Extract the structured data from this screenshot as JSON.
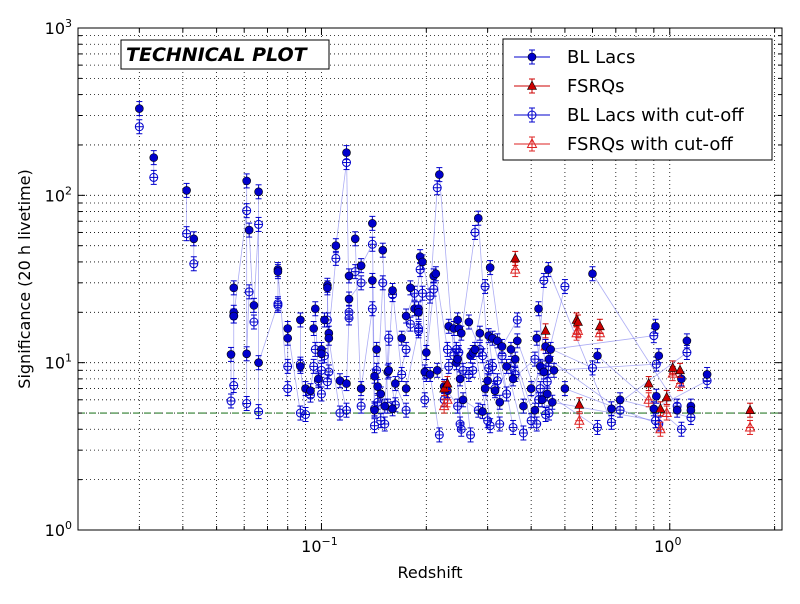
{
  "chart_data": {
    "type": "scatter",
    "annotation": "TECHNICAL PLOT",
    "xlabel": "Redshift",
    "ylabel": "Significance (20 h livetime)",
    "xscale": "log",
    "yscale": "log",
    "xlim": [
      0.02,
      2.1
    ],
    "ylim": [
      1,
      1000
    ],
    "x_tick_labels": [
      {
        "value": 0.1,
        "base": "10",
        "exp": "−1"
      },
      {
        "value": 1,
        "base": "10",
        "exp": "0"
      }
    ],
    "y_tick_labels": [
      {
        "value": 1,
        "base": "10",
        "exp": "0"
      },
      {
        "value": 10,
        "base": "10",
        "exp": "1"
      },
      {
        "value": 100,
        "base": "10",
        "exp": "2"
      },
      {
        "value": 1000,
        "base": "10",
        "exp": "3"
      }
    ],
    "grid": true,
    "legend_position": "top-right",
    "threshold": {
      "y": 5,
      "color": "#2e7d2e",
      "style": "dashed"
    },
    "series": [
      {
        "name": "BL Lacs",
        "marker": "filled-circle",
        "color": "#0000cc",
        "points": [
          [
            0.03,
            330
          ],
          [
            0.033,
            168
          ],
          [
            0.041,
            107
          ],
          [
            0.043,
            55
          ],
          [
            0.055,
            11.2
          ],
          [
            0.056,
            28
          ],
          [
            0.056,
            20
          ],
          [
            0.056,
            19
          ],
          [
            0.061,
            122
          ],
          [
            0.061,
            11.3
          ],
          [
            0.062,
            62
          ],
          [
            0.064,
            22
          ],
          [
            0.066,
            105
          ],
          [
            0.066,
            10
          ],
          [
            0.075,
            36
          ],
          [
            0.075,
            35
          ],
          [
            0.08,
            14
          ],
          [
            0.08,
            16
          ],
          [
            0.087,
            18
          ],
          [
            0.087,
            9.5
          ],
          [
            0.09,
            7
          ],
          [
            0.093,
            6.8
          ],
          [
            0.095,
            16
          ],
          [
            0.096,
            21
          ],
          [
            0.098,
            8
          ],
          [
            0.1,
            12
          ],
          [
            0.1,
            11.3
          ],
          [
            0.102,
            18
          ],
          [
            0.104,
            29
          ],
          [
            0.104,
            28
          ],
          [
            0.105,
            15
          ],
          [
            0.105,
            14
          ],
          [
            0.11,
            50
          ],
          [
            0.113,
            7.8
          ],
          [
            0.118,
            180
          ],
          [
            0.118,
            7.5
          ],
          [
            0.12,
            33
          ],
          [
            0.12,
            24
          ],
          [
            0.125,
            55
          ],
          [
            0.13,
            38
          ],
          [
            0.13,
            7
          ],
          [
            0.14,
            68
          ],
          [
            0.14,
            31
          ],
          [
            0.142,
            8.3
          ],
          [
            0.142,
            5.2
          ],
          [
            0.144,
            12
          ],
          [
            0.145,
            7.2
          ],
          [
            0.148,
            6.5
          ],
          [
            0.15,
            47
          ],
          [
            0.152,
            5.5
          ],
          [
            0.155,
            8.8
          ],
          [
            0.156,
            9
          ],
          [
            0.16,
            27
          ],
          [
            0.16,
            5.3
          ],
          [
            0.163,
            7.5
          ],
          [
            0.17,
            14
          ],
          [
            0.175,
            19
          ],
          [
            0.175,
            7
          ],
          [
            0.18,
            28
          ],
          [
            0.185,
            21
          ],
          [
            0.19,
            21
          ],
          [
            0.19,
            20
          ],
          [
            0.192,
            43
          ],
          [
            0.195,
            40
          ],
          [
            0.198,
            8.8
          ],
          [
            0.2,
            11.5
          ],
          [
            0.205,
            8.5
          ],
          [
            0.21,
            33
          ],
          [
            0.213,
            34
          ],
          [
            0.215,
            9
          ],
          [
            0.218,
            133
          ],
          [
            0.225,
            7.2
          ],
          [
            0.23,
            6.8
          ],
          [
            0.232,
            16.5
          ],
          [
            0.24,
            16
          ],
          [
            0.244,
            10
          ],
          [
            0.246,
            18
          ],
          [
            0.246,
            10.5
          ],
          [
            0.248,
            16
          ],
          [
            0.25,
            8
          ],
          [
            0.252,
            15
          ],
          [
            0.255,
            6
          ],
          [
            0.265,
            17.5
          ],
          [
            0.268,
            11
          ],
          [
            0.272,
            11.5
          ],
          [
            0.276,
            12
          ],
          [
            0.282,
            73
          ],
          [
            0.285,
            15
          ],
          [
            0.29,
            5.1
          ],
          [
            0.295,
            7
          ],
          [
            0.3,
            7.8
          ],
          [
            0.302,
            14.5
          ],
          [
            0.305,
            37
          ],
          [
            0.31,
            14
          ],
          [
            0.315,
            6.8
          ],
          [
            0.32,
            13.5
          ],
          [
            0.325,
            5.8
          ],
          [
            0.33,
            12.5
          ],
          [
            0.34,
            9.5
          ],
          [
            0.35,
            12
          ],
          [
            0.355,
            8
          ],
          [
            0.36,
            10.5
          ],
          [
            0.365,
            13.5
          ],
          [
            0.38,
            5.5
          ],
          [
            0.4,
            7
          ],
          [
            0.41,
            5.2
          ],
          [
            0.415,
            14
          ],
          [
            0.42,
            21
          ],
          [
            0.425,
            9.5
          ],
          [
            0.43,
            6
          ],
          [
            0.435,
            8.8
          ],
          [
            0.44,
            12.5
          ],
          [
            0.445,
            6.5
          ],
          [
            0.448,
            36
          ],
          [
            0.45,
            10.5
          ],
          [
            0.455,
            12
          ],
          [
            0.46,
            5.8
          ],
          [
            0.465,
            9
          ],
          [
            0.5,
            7
          ],
          [
            0.6,
            34
          ],
          [
            0.62,
            11
          ],
          [
            0.68,
            5.3
          ],
          [
            0.72,
            6
          ],
          [
            0.9,
            5.3
          ],
          [
            0.91,
            16.5
          ],
          [
            0.915,
            6.3
          ],
          [
            0.93,
            11
          ],
          [
            1.05,
            5.2
          ],
          [
            1.08,
            8
          ],
          [
            1.12,
            13.5
          ],
          [
            1.15,
            5.5
          ],
          [
            1.15,
            5.2
          ],
          [
            1.28,
            8.5
          ]
        ]
      },
      {
        "name": "FSRQs",
        "marker": "filled-triangle",
        "color": "#cc0000",
        "points": [
          [
            0.225,
            7
          ],
          [
            0.23,
            7.5
          ],
          [
            0.36,
            42
          ],
          [
            0.44,
            15.5
          ],
          [
            0.54,
            18
          ],
          [
            0.545,
            17.5
          ],
          [
            0.55,
            5.6
          ],
          [
            0.63,
            16.5
          ],
          [
            0.87,
            7.5
          ],
          [
            0.94,
            5.3
          ],
          [
            0.98,
            6.2
          ],
          [
            1.02,
            9.3
          ],
          [
            1.07,
            9
          ],
          [
            1.7,
            5.2
          ]
        ]
      },
      {
        "name": "BL Lacs with cut-off",
        "marker": "open-circle-cross",
        "color": "#0000cc",
        "points": [
          [
            0.03,
            257
          ],
          [
            0.033,
            128
          ],
          [
            0.041,
            59
          ],
          [
            0.043,
            39
          ],
          [
            0.055,
            5.9
          ],
          [
            0.056,
            7.3
          ],
          [
            0.056,
            19
          ],
          [
            0.061,
            81
          ],
          [
            0.061,
            5.7
          ],
          [
            0.062,
            26.5
          ],
          [
            0.064,
            17.5
          ],
          [
            0.066,
            67
          ],
          [
            0.066,
            5.1
          ],
          [
            0.075,
            22.5
          ],
          [
            0.075,
            22
          ],
          [
            0.08,
            7
          ],
          [
            0.08,
            9.5
          ],
          [
            0.087,
            5
          ],
          [
            0.087,
            9.8
          ],
          [
            0.09,
            4.9
          ],
          [
            0.093,
            6.4
          ],
          [
            0.095,
            9.5
          ],
          [
            0.096,
            12
          ],
          [
            0.098,
            7.8
          ],
          [
            0.1,
            9
          ],
          [
            0.1,
            6.5
          ],
          [
            0.102,
            11
          ],
          [
            0.104,
            18
          ],
          [
            0.104,
            7.7
          ],
          [
            0.105,
            8.8
          ],
          [
            0.11,
            42
          ],
          [
            0.113,
            5
          ],
          [
            0.118,
            157
          ],
          [
            0.118,
            5.2
          ],
          [
            0.12,
            20
          ],
          [
            0.12,
            18.5
          ],
          [
            0.125,
            35
          ],
          [
            0.13,
            30
          ],
          [
            0.13,
            5.5
          ],
          [
            0.14,
            51
          ],
          [
            0.14,
            21
          ],
          [
            0.142,
            5.3
          ],
          [
            0.142,
            4.2
          ],
          [
            0.144,
            9
          ],
          [
            0.145,
            5.8
          ],
          [
            0.148,
            4.5
          ],
          [
            0.15,
            30
          ],
          [
            0.152,
            4.3
          ],
          [
            0.155,
            5.5
          ],
          [
            0.156,
            14
          ],
          [
            0.16,
            25.5
          ],
          [
            0.163,
            5.6
          ],
          [
            0.17,
            8.5
          ],
          [
            0.175,
            12
          ],
          [
            0.175,
            5.2
          ],
          [
            0.18,
            17
          ],
          [
            0.185,
            26
          ],
          [
            0.19,
            16
          ],
          [
            0.19,
            15.5
          ],
          [
            0.192,
            36
          ],
          [
            0.195,
            26
          ],
          [
            0.198,
            6
          ],
          [
            0.2,
            8.5
          ],
          [
            0.205,
            25
          ],
          [
            0.21,
            27.5
          ],
          [
            0.215,
            111
          ],
          [
            0.218,
            3.7
          ],
          [
            0.225,
            6
          ],
          [
            0.23,
            12
          ],
          [
            0.232,
            9.5
          ],
          [
            0.24,
            11
          ],
          [
            0.244,
            12
          ],
          [
            0.246,
            5.5
          ],
          [
            0.248,
            11.5
          ],
          [
            0.25,
            4.3
          ],
          [
            0.252,
            4
          ],
          [
            0.255,
            9
          ],
          [
            0.265,
            8.5
          ],
          [
            0.268,
            3.7
          ],
          [
            0.272,
            9
          ],
          [
            0.276,
            60
          ],
          [
            0.282,
            5.2
          ],
          [
            0.285,
            12
          ],
          [
            0.29,
            11
          ],
          [
            0.295,
            28.5
          ],
          [
            0.3,
            4.5
          ],
          [
            0.302,
            9.3
          ],
          [
            0.305,
            4.2
          ],
          [
            0.31,
            9.5
          ],
          [
            0.315,
            7
          ],
          [
            0.32,
            7.8
          ],
          [
            0.325,
            4.3
          ],
          [
            0.33,
            11
          ],
          [
            0.34,
            6.5
          ],
          [
            0.35,
            9.5
          ],
          [
            0.355,
            4.1
          ],
          [
            0.36,
            8.5
          ],
          [
            0.365,
            18
          ],
          [
            0.38,
            3.8
          ],
          [
            0.4,
            4.5
          ],
          [
            0.41,
            10.5
          ],
          [
            0.415,
            4.3
          ],
          [
            0.42,
            6
          ],
          [
            0.425,
            7
          ],
          [
            0.43,
            9.3
          ],
          [
            0.435,
            31
          ],
          [
            0.44,
            4.9
          ],
          [
            0.445,
            7.7
          ],
          [
            0.448,
            9
          ],
          [
            0.45,
            5
          ],
          [
            0.5,
            28.5
          ],
          [
            0.6,
            9.3
          ],
          [
            0.62,
            4.1
          ],
          [
            0.68,
            4.4
          ],
          [
            0.72,
            5.2
          ],
          [
            0.9,
            14.5
          ],
          [
            0.91,
            4.5
          ],
          [
            0.915,
            9.8
          ],
          [
            0.93,
            4.3
          ],
          [
            1.05,
            5.5
          ],
          [
            1.08,
            4
          ],
          [
            1.12,
            11.5
          ],
          [
            1.15,
            4.7
          ],
          [
            1.28,
            7.8
          ]
        ]
      },
      {
        "name": "FSRQs with cut-off",
        "marker": "open-triangle-cross",
        "color": "#dd2222",
        "points": [
          [
            0.225,
            5.5
          ],
          [
            0.23,
            6
          ],
          [
            0.36,
            36
          ],
          [
            0.44,
            12.5
          ],
          [
            0.54,
            15
          ],
          [
            0.545,
            15.5
          ],
          [
            0.55,
            4.5
          ],
          [
            0.63,
            15
          ],
          [
            0.87,
            6
          ],
          [
            0.94,
            4
          ],
          [
            0.98,
            5
          ],
          [
            1.02,
            8.6
          ],
          [
            1.07,
            7.5
          ],
          [
            1.7,
            4.1
          ]
        ]
      }
    ]
  }
}
